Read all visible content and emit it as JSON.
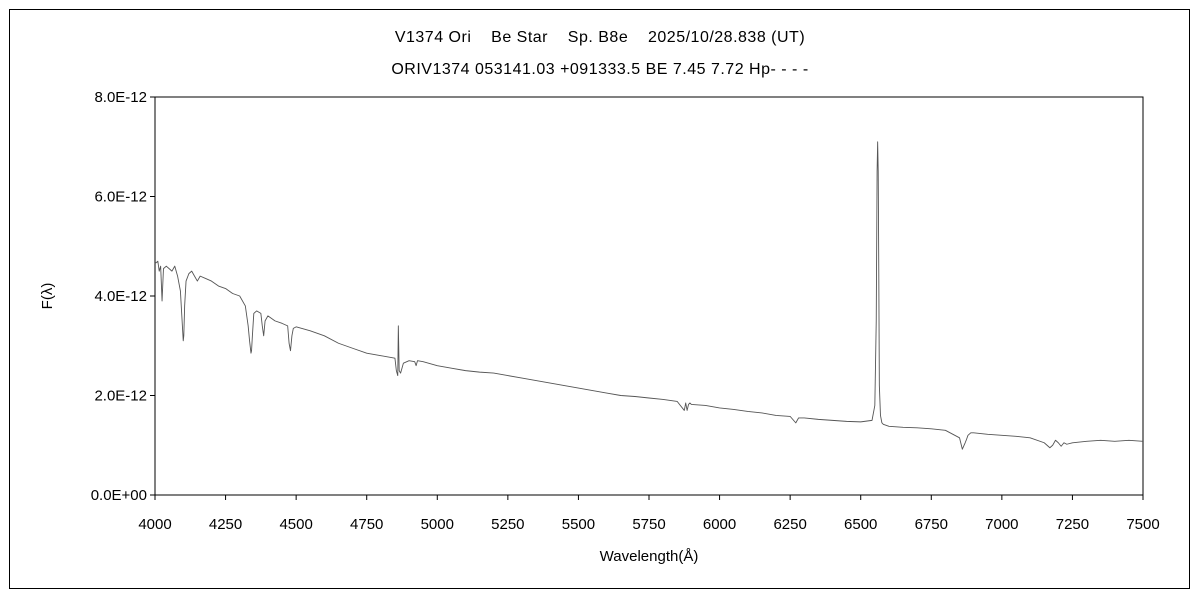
{
  "chart_data": {
    "type": "line",
    "title": "V1374 Ori    Be Star    Sp. B8e    2025/10/28.838 (UT)",
    "subtitle": "ORIV1374 053141.03 +091333.5 BE 7.45 7.72 Hp- - - -",
    "xlabel": "Wavelength(Å)",
    "ylabel": "F(λ)",
    "xlim": [
      4000,
      7500
    ],
    "ylim": [
      0,
      8e-12
    ],
    "x_ticks": [
      4000,
      4250,
      4500,
      4750,
      5000,
      5250,
      5500,
      5750,
      6000,
      6250,
      6500,
      6750,
      7000,
      7250,
      7500
    ],
    "x_tick_labels": [
      "4000",
      "4250",
      "4500",
      "4750",
      "5000",
      "5250",
      "5500",
      "5750",
      "6000",
      "6250",
      "6500",
      "6750",
      "7000",
      "7250",
      "7500"
    ],
    "y_ticks": [
      0,
      2e-12,
      4e-12,
      6e-12,
      8e-12
    ],
    "y_tick_labels": [
      "0.0E+00",
      "2.0E-12",
      "4.0E-12",
      "6.0E-12",
      "8.0E-12"
    ],
    "grid": false,
    "legend": "none",
    "line_color": "#555555",
    "series": [
      {
        "x": [
          4000,
          4010,
          4015,
          4020,
          4025,
          4030,
          4040,
          4050,
          4060,
          4070,
          4080,
          4090,
          4095,
          4100,
          4102,
          4105,
          4110,
          4120,
          4130,
          4140,
          4150,
          4160,
          4180,
          4200,
          4225,
          4250,
          4275,
          4300,
          4320,
          4330,
          4335,
          4340,
          4342,
          4345,
          4350,
          4360,
          4375,
          4380,
          4385,
          4390,
          4400,
          4425,
          4450,
          4470,
          4475,
          4480,
          4485,
          4490,
          4500,
          4550,
          4600,
          4650,
          4700,
          4750,
          4800,
          4850,
          4855,
          4860,
          4862,
          4865,
          4870,
          4880,
          4900,
          4920,
          4925,
          4930,
          4950,
          5000,
          5050,
          5100,
          5150,
          5200,
          5250,
          5300,
          5350,
          5400,
          5450,
          5500,
          5550,
          5600,
          5650,
          5700,
          5750,
          5800,
          5850,
          5875,
          5880,
          5885,
          5890,
          5895,
          5900,
          5950,
          6000,
          6050,
          6100,
          6150,
          6200,
          6250,
          6270,
          6280,
          6300,
          6350,
          6400,
          6450,
          6500,
          6540,
          6550,
          6555,
          6558,
          6560,
          6562,
          6564,
          6566,
          6570,
          6575,
          6580,
          6600,
          6650,
          6700,
          6750,
          6800,
          6850,
          6860,
          6870,
          6875,
          6880,
          6890,
          6900,
          6950,
          7000,
          7050,
          7100,
          7150,
          7170,
          7180,
          7190,
          7200,
          7210,
          7220,
          7230,
          7250,
          7300,
          7350,
          7400,
          7450,
          7500
        ],
        "y": [
          4.65e-12,
          4.7e-12,
          4.5e-12,
          4.6e-12,
          3.9e-12,
          4.55e-12,
          4.6e-12,
          4.55e-12,
          4.5e-12,
          4.6e-12,
          4.4e-12,
          4.1e-12,
          3.6e-12,
          3.1e-12,
          3.2e-12,
          3.8e-12,
          4.3e-12,
          4.45e-12,
          4.5e-12,
          4.4e-12,
          4.3e-12,
          4.4e-12,
          4.35e-12,
          4.3e-12,
          4.2e-12,
          4.15e-12,
          4.05e-12,
          4e-12,
          3.8e-12,
          3.4e-12,
          3.1e-12,
          2.85e-12,
          2.9e-12,
          3.2e-12,
          3.65e-12,
          3.7e-12,
          3.65e-12,
          3.4e-12,
          3.2e-12,
          3.5e-12,
          3.6e-12,
          3.5e-12,
          3.45e-12,
          3.4e-12,
          3.05e-12,
          2.9e-12,
          3.2e-12,
          3.35e-12,
          3.38e-12,
          3.3e-12,
          3.2e-12,
          3.05e-12,
          2.95e-12,
          2.85e-12,
          2.8e-12,
          2.75e-12,
          2.5e-12,
          2.4e-12,
          3.4e-12,
          2.5e-12,
          2.45e-12,
          2.65e-12,
          2.7e-12,
          2.68e-12,
          2.6e-12,
          2.7e-12,
          2.68e-12,
          2.6e-12,
          2.55e-12,
          2.5e-12,
          2.47e-12,
          2.45e-12,
          2.4e-12,
          2.35e-12,
          2.3e-12,
          2.25e-12,
          2.2e-12,
          2.15e-12,
          2.1e-12,
          2.05e-12,
          2e-12,
          1.98e-12,
          1.95e-12,
          1.92e-12,
          1.88e-12,
          1.7e-12,
          1.85e-12,
          1.7e-12,
          1.82e-12,
          1.85e-12,
          1.82e-12,
          1.8e-12,
          1.75e-12,
          1.72e-12,
          1.68e-12,
          1.65e-12,
          1.6e-12,
          1.58e-12,
          1.45e-12,
          1.55e-12,
          1.55e-12,
          1.52e-12,
          1.5e-12,
          1.48e-12,
          1.47e-12,
          1.5e-12,
          1.8e-12,
          3.5e-12,
          6.5e-12,
          7.1e-12,
          6.5e-12,
          4.5e-12,
          2.2e-12,
          1.6e-12,
          1.45e-12,
          1.42e-12,
          1.38e-12,
          1.36e-12,
          1.35e-12,
          1.33e-12,
          1.3e-12,
          1.15e-12,
          9.2e-13,
          1.05e-12,
          1.12e-12,
          1.2e-12,
          1.25e-12,
          1.25e-12,
          1.22e-12,
          1.2e-12,
          1.18e-12,
          1.15e-12,
          1.05e-12,
          9.5e-13,
          1e-12,
          1.1e-12,
          1.05e-12,
          9.8e-13,
          1.05e-12,
          1.02e-12,
          1.05e-12,
          1.08e-12,
          1.1e-12,
          1.08e-12,
          1.1e-12,
          1.08e-12
        ]
      }
    ]
  }
}
